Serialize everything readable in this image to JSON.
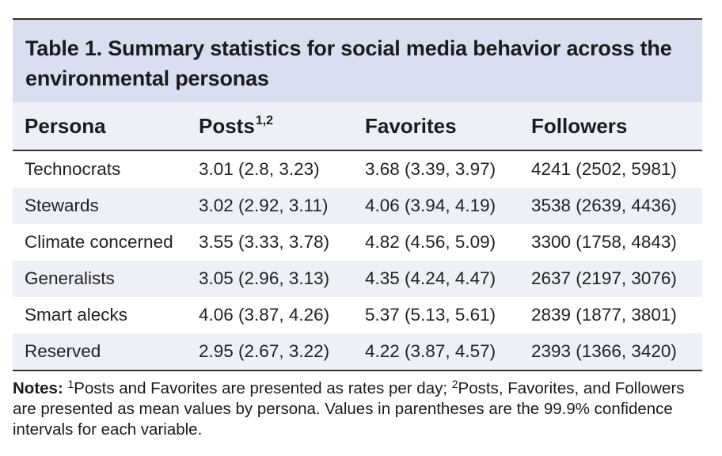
{
  "table": {
    "caption_number": "Table 1.",
    "caption_text": "Summary statistics for social media behavior across the environmental personas",
    "headers": {
      "persona": "Persona",
      "posts": "Posts",
      "posts_superscript": "1,2",
      "favorites": "Favorites",
      "followers": "Followers"
    },
    "rows": [
      {
        "persona": "Technocrats",
        "posts": "3.01 (2.8, 3.23)",
        "favorites": "3.68 (3.39, 3.97)",
        "followers": "4241 (2502, 5981)"
      },
      {
        "persona": "Stewards",
        "posts": "3.02 (2.92, 3.11)",
        "favorites": "4.06 (3.94, 4.19)",
        "followers": "3538 (2639, 4436)"
      },
      {
        "persona": "Climate concerned",
        "posts": "3.55 (3.33, 3.78)",
        "favorites": "4.82 (4.56, 5.09)",
        "followers": "3300 (1758, 4843)"
      },
      {
        "persona": "Generalists",
        "posts": "3.05 (2.96, 3.13)",
        "favorites": "4.35 (4.24, 4.47)",
        "followers": "2637 (2197, 3076)"
      },
      {
        "persona": "Smart alecks",
        "posts": "4.06 (3.87, 4.26)",
        "favorites": "5.37 (5.13, 5.61)",
        "followers": "2839 (1877, 3801)"
      },
      {
        "persona": "Reserved",
        "posts": "2.95 (2.67, 3.22)",
        "favorites": "4.22 (3.87, 4.57)",
        "followers": "2393 (1366, 3420)"
      }
    ]
  },
  "notes": {
    "label": "Notes:",
    "sup1": "1",
    "text1": "Posts and Favorites are presented as rates per day; ",
    "sup2": "2",
    "text2": "Posts, Favorites, and Followers are presented as mean values by persona. Values in parentheses are the 99.9% confidence intervals for each variable."
  },
  "colors": {
    "caption_background": "#d9dff0",
    "stripe_background": "#eef0f8",
    "rule": "#333333"
  }
}
